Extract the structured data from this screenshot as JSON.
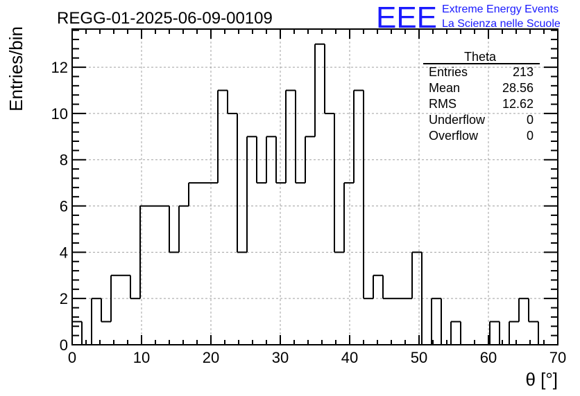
{
  "chart_data": {
    "type": "bar",
    "subtype": "step-histogram",
    "title": "REGG-01-2025-06-09-00109",
    "xlabel": "θ [°]",
    "ylabel": "Entries/bin",
    "xlim": [
      0,
      70
    ],
    "ylim": [
      0,
      13.65
    ],
    "grid": true,
    "x_ticks": [
      0,
      10,
      20,
      30,
      40,
      50,
      60,
      70
    ],
    "y_ticks": [
      0,
      2,
      4,
      6,
      8,
      10,
      12
    ],
    "bin_width": 1.4,
    "values": [
      1,
      0,
      2,
      1,
      3,
      3,
      2,
      6,
      6,
      6,
      4,
      6,
      7,
      7,
      7,
      11,
      10,
      4,
      9,
      7,
      9,
      7,
      11,
      7,
      9,
      13,
      10,
      4,
      7,
      11,
      2,
      3,
      2,
      2,
      2,
      4,
      0,
      2,
      0,
      1,
      0,
      0,
      0,
      1,
      0,
      1,
      2,
      1,
      0,
      0
    ],
    "stats": {
      "name": "Theta",
      "entries_label": "Entries",
      "entries": "213",
      "mean_label": "Mean",
      "mean": "28.56",
      "rms_label": "RMS",
      "rms": "12.62",
      "underflow_label": "Underflow",
      "underflow": "0",
      "overflow_label": "Overflow",
      "overflow": "0"
    }
  },
  "logo": {
    "mark": "EEE",
    "line1": "Extreme Energy Events",
    "line2": "La Scienza nelle Scuole",
    "color": "#1a1aff"
  }
}
